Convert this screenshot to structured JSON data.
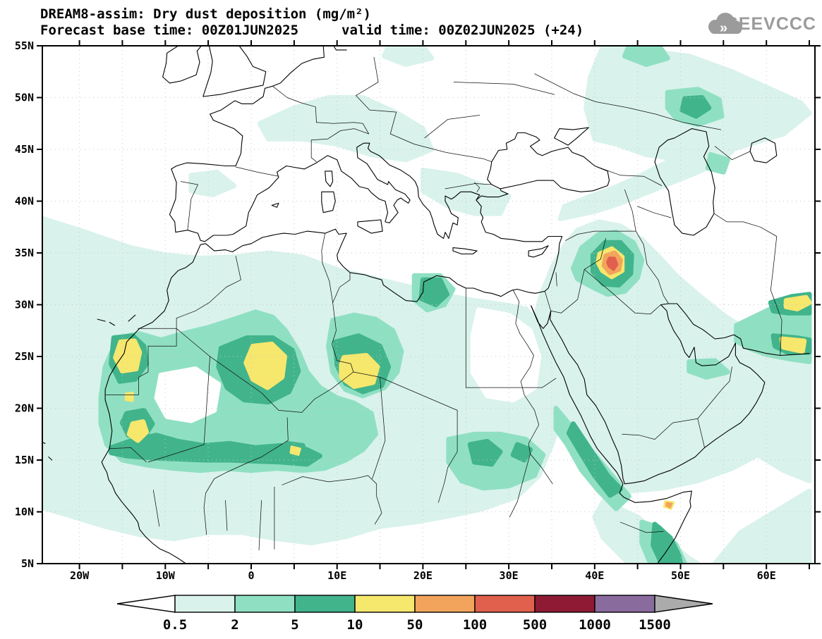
{
  "header": {
    "title": "DREAM8-assim: Dry dust deposition (mg/m²)",
    "forecast_base": "Forecast base time: 00Z01JUN2025",
    "valid_time": "valid time: 00Z02JUN2025 (+24)",
    "logo_text": "SEEVCCC"
  },
  "axes": {
    "lat_ticks": [
      "55N",
      "50N",
      "45N",
      "40N",
      "35N",
      "30N",
      "25N",
      "20N",
      "15N",
      "10N",
      "5N"
    ],
    "lon_ticks": [
      "20W",
      "10W",
      "0",
      "10E",
      "20E",
      "30E",
      "40E",
      "50E",
      "60E"
    ]
  },
  "colorbar": {
    "labels": [
      "0.5",
      "2",
      "5",
      "10",
      "50",
      "100",
      "500",
      "1000",
      "1500"
    ],
    "segment_colors": [
      "#d9f2ec",
      "#8fe0c2",
      "#41b48c",
      "#f6e76d",
      "#f2a45c",
      "#e0604d",
      "#8e1b33",
      "#8a6b9e"
    ],
    "below_color": "#ffffff",
    "above_color": "#ababab"
  },
  "chart_data": {
    "type": "heatmap",
    "title": "DREAM8-assim: Dry dust deposition (mg/m²)",
    "variable": "Dry dust deposition",
    "units": "mg/m²",
    "forecast_base_time": "00Z01JUN2025",
    "valid_time": "00Z02JUN2025",
    "forecast_hour": "+24",
    "lon_range_deg": [
      -25,
      65
    ],
    "lat_range_deg": [
      5,
      55
    ],
    "lon_tick_values": [
      -20,
      -10,
      0,
      10,
      20,
      30,
      40,
      50,
      60
    ],
    "lat_tick_values": [
      55,
      50,
      45,
      40,
      35,
      30,
      25,
      20,
      15,
      10,
      5
    ],
    "contour_levels": [
      0.5,
      2,
      5,
      10,
      50,
      100,
      500,
      1000,
      1500
    ],
    "level_colors": [
      "#ffffff",
      "#d9f2ec",
      "#8fe0c2",
      "#41b48c",
      "#f6e76d",
      "#f2a45c",
      "#e0604d",
      "#8e1b33",
      "#8a6b9e",
      "#ababab"
    ],
    "legend_position": "bottom",
    "grid": "dotted 5-degree graticule",
    "coverage_summary": "Background deposition of 0.5-5 mg/m² over the Sahara, Sahel, Arabian Peninsula, eastern Atlantic, Horn of Africa and Caspian region; stronger cores of 5-50 mg/m² over West and Central Sahara; single maximum exceeding 100 mg/m² over NW Iraq / E Syria.",
    "hotspots": [
      {
        "region": "NW Iraq / E Syria",
        "lon": 42,
        "lat": 34,
        "value_range_mg_m2": "100-500"
      },
      {
        "region": "Western Sahara coast",
        "lon": -14,
        "lat": 25,
        "value_range_mg_m2": "10-50"
      },
      {
        "region": "Central Algeria",
        "lon": 2,
        "lat": 24,
        "value_range_mg_m2": "10-50"
      },
      {
        "region": "SW Libya / NW Chad",
        "lon": 12.5,
        "lat": 23.5,
        "value_range_mg_m2": "10-50"
      },
      {
        "region": "Mauritania",
        "lon": -13,
        "lat": 18,
        "value_range_mg_m2": "10-50"
      },
      {
        "region": "SE Iran / Pakistan coast (east edge)",
        "lon": 63,
        "lat": 28,
        "value_range_mg_m2": "10-50"
      },
      {
        "region": "Somaliland coast, Gulf of Aden",
        "lon": 48.6,
        "lat": 10.7,
        "value_range_mg_m2": "50-100"
      }
    ]
  }
}
